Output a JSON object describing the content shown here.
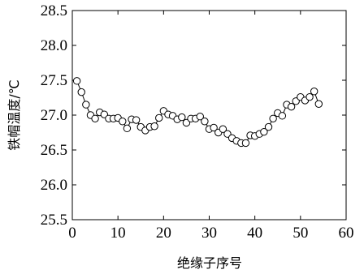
{
  "chart_data": {
    "type": "line",
    "xlabel": "绝缘子序号",
    "ylabel": "铁帽温度/℃",
    "xlim": [
      0,
      60
    ],
    "ylim": [
      25.5,
      28.5
    ],
    "xticks": [
      "0",
      "10",
      "20",
      "30",
      "40",
      "50",
      "60"
    ],
    "yticks": [
      "25.5",
      "26.0",
      "26.5",
      "27.0",
      "27.5",
      "28.0",
      "28.5"
    ],
    "grid": false,
    "marker": "open-circle",
    "line_color": "#000000",
    "series": [
      {
        "x": [
          1,
          2,
          3,
          4,
          5,
          6,
          7,
          8,
          9,
          10,
          11,
          12,
          13,
          14,
          15,
          16,
          17,
          18,
          19,
          20,
          21,
          22,
          23,
          24,
          25,
          26,
          27,
          28,
          29,
          30,
          31,
          32,
          33,
          34,
          35,
          36,
          37,
          38,
          39,
          40,
          41,
          42,
          43,
          44,
          45,
          46,
          47,
          48,
          49,
          50,
          51,
          52,
          53,
          54
        ],
        "values": [
          27.49,
          27.33,
          27.15,
          27.0,
          26.95,
          27.04,
          27.01,
          26.95,
          26.95,
          26.96,
          26.91,
          26.81,
          26.94,
          26.93,
          26.83,
          26.78,
          26.83,
          26.84,
          26.96,
          27.06,
          27.01,
          26.99,
          26.94,
          26.97,
          26.89,
          26.95,
          26.95,
          26.98,
          26.91,
          26.8,
          26.82,
          26.75,
          26.8,
          26.73,
          26.67,
          26.63,
          26.6,
          26.6,
          26.71,
          26.7,
          26.73,
          26.76,
          26.83,
          26.95,
          27.03,
          26.99,
          27.15,
          27.12,
          27.2,
          27.26,
          27.21,
          27.26,
          27.34,
          27.16
        ]
      }
    ]
  }
}
